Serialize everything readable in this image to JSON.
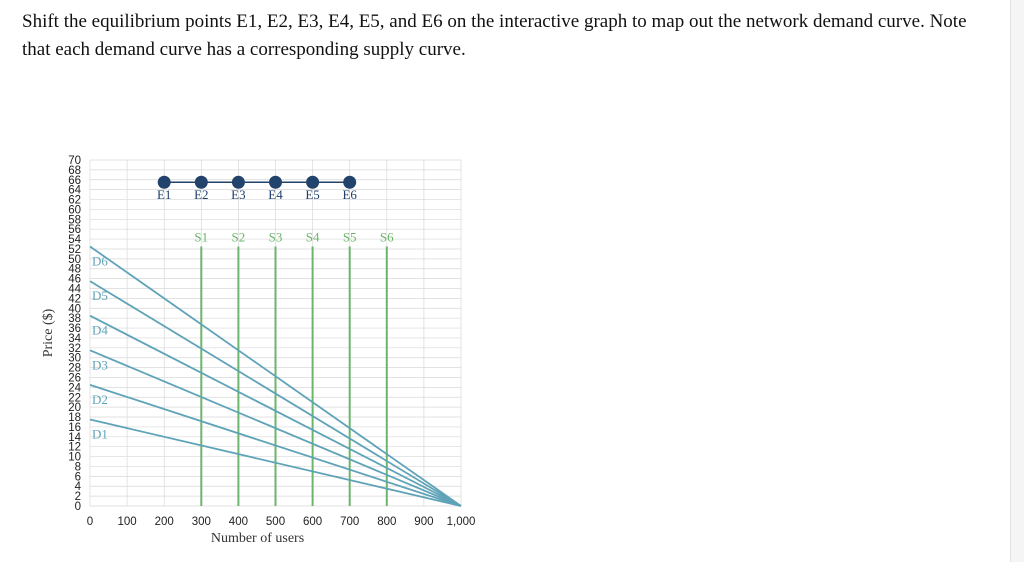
{
  "instructions": "Shift the equilibrium points E1, E2, E3, E4, E5, and E6 on the interactive graph to map out the network demand curve. Note that each demand curve has a corresponding supply curve.",
  "colors": {
    "demand": "#5fa3b8",
    "supply": "#6cb56c",
    "point": "#22436b",
    "point_line": "#22436b",
    "grid": "#d8d8d8",
    "axis_text": "#222222"
  },
  "chart_data": {
    "type": "line",
    "xlabel": "Number of users",
    "ylabel": "Price ($)",
    "xlim": [
      0,
      1000
    ],
    "ylim": [
      0,
      70
    ],
    "xticks": [
      0,
      100,
      200,
      300,
      400,
      500,
      600,
      700,
      800,
      900,
      1000
    ],
    "xtick_labels": [
      "0",
      "100",
      "200",
      "300",
      "400",
      "500",
      "600",
      "700",
      "800",
      "900",
      "1,000"
    ],
    "yticks": [
      0,
      2,
      4,
      6,
      8,
      10,
      12,
      14,
      16,
      18,
      20,
      22,
      24,
      26,
      28,
      30,
      32,
      34,
      36,
      38,
      40,
      42,
      44,
      46,
      48,
      50,
      52,
      54,
      56,
      58,
      60,
      62,
      64,
      66,
      68,
      70
    ],
    "grid": true,
    "demand_curves": [
      {
        "name": "D1",
        "points": [
          [
            0,
            17.5
          ],
          [
            1000,
            0
          ]
        ]
      },
      {
        "name": "D2",
        "points": [
          [
            0,
            24.5
          ],
          [
            1000,
            0
          ]
        ]
      },
      {
        "name": "D3",
        "points": [
          [
            0,
            31.5
          ],
          [
            1000,
            0
          ]
        ]
      },
      {
        "name": "D4",
        "points": [
          [
            0,
            38.5
          ],
          [
            1000,
            0
          ]
        ]
      },
      {
        "name": "D5",
        "points": [
          [
            0,
            45.5
          ],
          [
            1000,
            0
          ]
        ]
      },
      {
        "name": "D6",
        "points": [
          [
            0,
            52.5
          ],
          [
            1000,
            0
          ]
        ]
      }
    ],
    "supply_curves": [
      {
        "name": "S1",
        "x": 300,
        "y_top": 52.5
      },
      {
        "name": "S2",
        "x": 400,
        "y_top": 52.5
      },
      {
        "name": "S3",
        "x": 500,
        "y_top": 52.5
      },
      {
        "name": "S4",
        "x": 600,
        "y_top": 52.5
      },
      {
        "name": "S5",
        "x": 700,
        "y_top": 52.5
      },
      {
        "name": "S6",
        "x": 800,
        "y_top": 52.5
      }
    ],
    "equilibrium_points": [
      {
        "name": "E1",
        "x": 200,
        "y": 65.5
      },
      {
        "name": "E2",
        "x": 300,
        "y": 65.5
      },
      {
        "name": "E3",
        "x": 400,
        "y": 65.5
      },
      {
        "name": "E4",
        "x": 500,
        "y": 65.5
      },
      {
        "name": "E5",
        "x": 600,
        "y": 65.5
      },
      {
        "name": "E6",
        "x": 700,
        "y": 65.5
      }
    ]
  }
}
